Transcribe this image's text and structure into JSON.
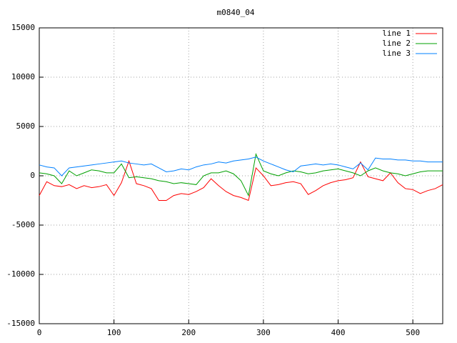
{
  "chart_data": {
    "type": "line",
    "title": "m0840_04",
    "x": [
      0,
      10,
      20,
      30,
      40,
      50,
      60,
      70,
      80,
      90,
      100,
      110,
      120,
      130,
      140,
      150,
      160,
      170,
      180,
      190,
      200,
      210,
      220,
      230,
      240,
      250,
      260,
      270,
      280,
      290,
      300,
      310,
      320,
      330,
      340,
      350,
      360,
      370,
      380,
      390,
      400,
      410,
      420,
      430,
      440,
      450,
      460,
      470,
      480,
      490,
      500,
      510,
      520,
      530,
      540
    ],
    "series": [
      {
        "name": "line 1",
        "color": "#ff0000",
        "values": [
          -2000,
          -600,
          -1000,
          -1100,
          -900,
          -1300,
          -1000,
          -1200,
          -1100,
          -900,
          -2000,
          -700,
          1500,
          -800,
          -1000,
          -1300,
          -2500,
          -2500,
          -2000,
          -1800,
          -1900,
          -1600,
          -1200,
          -300,
          -1000,
          -1600,
          -2000,
          -2200,
          -2500,
          800,
          0,
          -1000,
          -900,
          -700,
          -600,
          -800,
          -1900,
          -1500,
          -1000,
          -700,
          -500,
          -400,
          -200,
          1400,
          -100,
          -300,
          -500,
          300,
          -700,
          -1300,
          -1400,
          -1800,
          -1500,
          -1300,
          -900
        ]
      },
      {
        "name": "line 2",
        "color": "#00a000",
        "values": [
          300,
          200,
          0,
          -800,
          500,
          0,
          300,
          600,
          500,
          300,
          300,
          1200,
          -200,
          -100,
          -200,
          -300,
          -500,
          -600,
          -800,
          -700,
          -800,
          -900,
          0,
          300,
          300,
          500,
          200,
          -500,
          -2000,
          2200,
          500,
          200,
          0,
          300,
          500,
          400,
          200,
          300,
          500,
          600,
          700,
          500,
          300,
          0,
          500,
          800,
          500,
          300,
          200,
          0,
          200,
          400,
          500,
          500,
          500
        ]
      },
      {
        "name": "line 3",
        "color": "#0080ff",
        "values": [
          1100,
          900,
          800,
          0,
          800,
          900,
          1000,
          1100,
          1200,
          1300,
          1400,
          1500,
          1300,
          1200,
          1100,
          1200,
          800,
          400,
          500,
          700,
          600,
          900,
          1100,
          1200,
          1400,
          1300,
          1500,
          1600,
          1700,
          1900,
          1500,
          1200,
          900,
          600,
          400,
          1000,
          1100,
          1200,
          1100,
          1200,
          1100,
          900,
          700,
          1300,
          600,
          1800,
          1700,
          1700,
          1600,
          1600,
          1500,
          1500,
          1400,
          1400,
          1400
        ]
      }
    ],
    "xlim": [
      0,
      540
    ],
    "xticks": [
      0,
      100,
      200,
      300,
      400,
      500
    ],
    "ylim": [
      -15000,
      15000
    ],
    "yticks": [
      -15000,
      -10000,
      -5000,
      0,
      5000,
      10000,
      15000
    ],
    "grid": true,
    "legend": "top-right"
  }
}
